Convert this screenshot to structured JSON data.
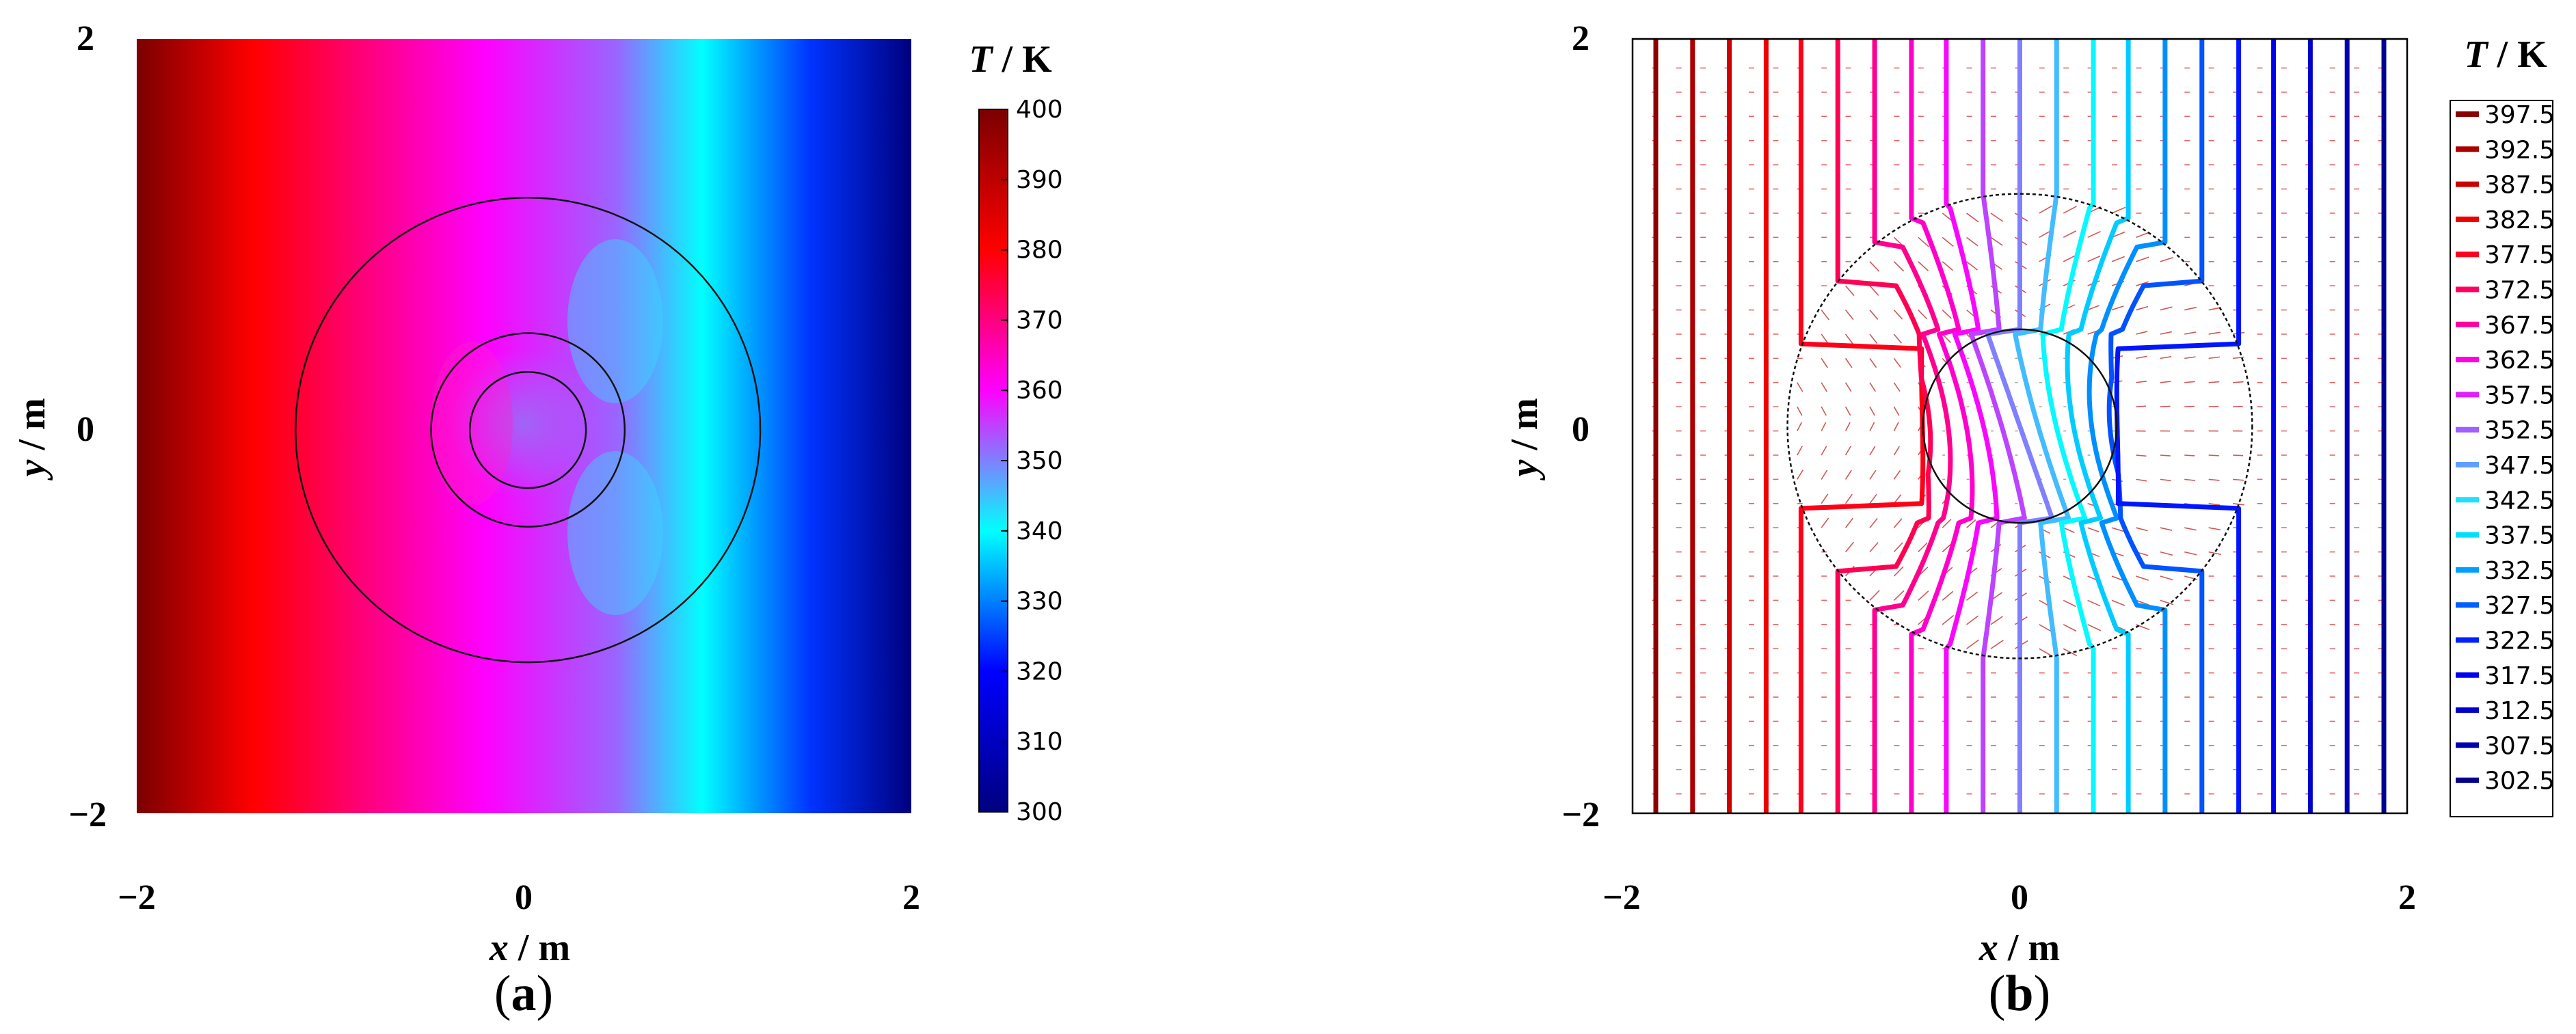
{
  "chart_data": [
    {
      "type": "heatmap",
      "panel": "(a)",
      "panel_letter": "a",
      "xlabel_var": "x",
      "xlabel_unit": "m",
      "ylabel_var": "y",
      "ylabel_unit": "m",
      "x_ticks": [
        "−2",
        "0",
        "2"
      ],
      "y_ticks": [
        "2",
        "0",
        "−2"
      ],
      "xlim": [
        -2,
        2
      ],
      "ylim": [
        -2,
        2
      ],
      "colorbar_title_var": "T",
      "colorbar_title_unit": "K",
      "colorbar_range": [
        300,
        400
      ],
      "colorbar_ticks": [
        "400",
        "390",
        "380",
        "370",
        "360",
        "350",
        "340",
        "330",
        "320",
        "310",
        "300"
      ],
      "circle_radii": [
        0.3,
        0.5,
        1.2
      ],
      "colormap": [
        "#7a0000",
        "#ff0000",
        "#ff00ff",
        "#00ffff",
        "#0000ff",
        "#00007f"
      ]
    },
    {
      "type": "line",
      "panel": "(b)",
      "panel_letter": "b",
      "xlabel_var": "x",
      "xlabel_unit": "m",
      "ylabel_var": "y",
      "ylabel_unit": "m",
      "x_ticks": [
        "−2",
        "0",
        "2"
      ],
      "y_ticks": [
        "2",
        "0",
        "−2"
      ],
      "xlim": [
        -2,
        2
      ],
      "ylim": [
        -2,
        2
      ],
      "legend_title_var": "T",
      "legend_title_unit": "K",
      "legend_position": "right",
      "levels": [
        "397.5",
        "392.5",
        "387.5",
        "382.5",
        "377.5",
        "372.5",
        "367.5",
        "362.5",
        "357.5",
        "352.5",
        "347.5",
        "342.5",
        "337.5",
        "332.5",
        "327.5",
        "322.5",
        "317.5",
        "312.5",
        "307.5",
        "302.5"
      ],
      "isotherm_x_far": [
        -1.88,
        -1.69,
        -1.5,
        -1.31,
        -1.13,
        -0.94,
        -0.75,
        -0.56,
        -0.38,
        -0.19,
        0.0,
        0.19,
        0.38,
        0.56,
        0.75,
        0.94,
        1.13,
        1.31,
        1.5,
        1.69,
        1.88
      ],
      "circle_radii": [
        0.5,
        1.2
      ]
    }
  ]
}
